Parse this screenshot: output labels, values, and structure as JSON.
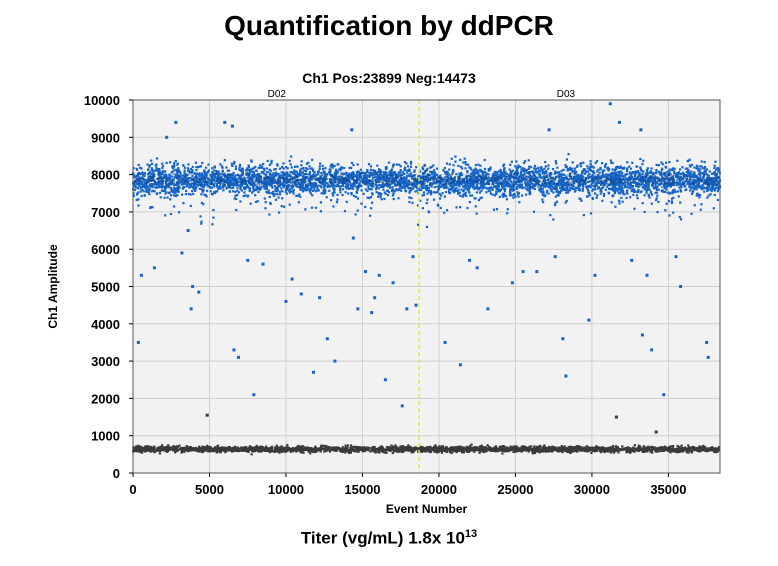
{
  "page_title": "Quantification by ddPCR",
  "footer": {
    "titer_prefix": "Titer (vg/mL)  1.8x 10",
    "titer_exponent": "13"
  },
  "chart_data": {
    "type": "scatter",
    "title": "Ch1 Pos:23899 Neg:14473",
    "xlabel": "Event Number",
    "ylabel": "Ch1 Amplitude",
    "xlim": [
      0,
      38372
    ],
    "ylim": [
      0,
      10000
    ],
    "xticks": [
      0,
      5000,
      10000,
      15000,
      20000,
      25000,
      30000,
      35000
    ],
    "yticks": [
      0,
      1000,
      2000,
      3000,
      4000,
      5000,
      6000,
      7000,
      8000,
      9000,
      10000
    ],
    "grid": true,
    "wells": [
      {
        "label": "D02",
        "x_center": 9400
      },
      {
        "label": "D03",
        "x_center": 28300
      }
    ],
    "well_divider_x": 18700,
    "colors": {
      "positive": "#1565c8",
      "negative": "#3a3a3a",
      "divider": "#e8e838",
      "plot_bg": "#f2f2f2",
      "grid": "#cfcfcf"
    },
    "clusters": [
      {
        "name": "Positive",
        "count": 23899,
        "amplitude_center": 7850,
        "amplitude_spread": 320
      },
      {
        "name": "Negative",
        "count": 14473,
        "amplitude_center": 640,
        "amplitude_spread": 60
      }
    ],
    "outliers": [
      {
        "x": 350,
        "y": 3500
      },
      {
        "x": 550,
        "y": 5300
      },
      {
        "x": 1400,
        "y": 5500
      },
      {
        "x": 2200,
        "y": 9000
      },
      {
        "x": 2800,
        "y": 9400
      },
      {
        "x": 3200,
        "y": 5900
      },
      {
        "x": 3600,
        "y": 6500
      },
      {
        "x": 3800,
        "y": 4400
      },
      {
        "x": 3900,
        "y": 5000
      },
      {
        "x": 4300,
        "y": 4850
      },
      {
        "x": 4850,
        "y": 1550
      },
      {
        "x": 6000,
        "y": 9400
      },
      {
        "x": 6500,
        "y": 9300
      },
      {
        "x": 6600,
        "y": 3300
      },
      {
        "x": 6900,
        "y": 3100
      },
      {
        "x": 7500,
        "y": 5700
      },
      {
        "x": 7900,
        "y": 2100
      },
      {
        "x": 8500,
        "y": 5600
      },
      {
        "x": 10000,
        "y": 4600
      },
      {
        "x": 10400,
        "y": 5200
      },
      {
        "x": 11000,
        "y": 4800
      },
      {
        "x": 11800,
        "y": 2700
      },
      {
        "x": 12200,
        "y": 4700
      },
      {
        "x": 12700,
        "y": 3600
      },
      {
        "x": 13200,
        "y": 3000
      },
      {
        "x": 14300,
        "y": 9200
      },
      {
        "x": 14400,
        "y": 6300
      },
      {
        "x": 14700,
        "y": 4400
      },
      {
        "x": 15200,
        "y": 5400
      },
      {
        "x": 15600,
        "y": 4300
      },
      {
        "x": 15800,
        "y": 4700
      },
      {
        "x": 16100,
        "y": 5300
      },
      {
        "x": 16500,
        "y": 2500
      },
      {
        "x": 17000,
        "y": 5100
      },
      {
        "x": 17600,
        "y": 1800
      },
      {
        "x": 17900,
        "y": 4400
      },
      {
        "x": 18300,
        "y": 5800
      },
      {
        "x": 18500,
        "y": 4500
      },
      {
        "x": 20400,
        "y": 3500
      },
      {
        "x": 21400,
        "y": 2900
      },
      {
        "x": 22000,
        "y": 5700
      },
      {
        "x": 22500,
        "y": 5500
      },
      {
        "x": 23200,
        "y": 4400
      },
      {
        "x": 24800,
        "y": 5100
      },
      {
        "x": 25500,
        "y": 5400
      },
      {
        "x": 26400,
        "y": 5400
      },
      {
        "x": 27200,
        "y": 9200
      },
      {
        "x": 27600,
        "y": 5800
      },
      {
        "x": 28100,
        "y": 3600
      },
      {
        "x": 28300,
        "y": 2600
      },
      {
        "x": 29800,
        "y": 4100
      },
      {
        "x": 30200,
        "y": 5300
      },
      {
        "x": 31200,
        "y": 9900
      },
      {
        "x": 31600,
        "y": 1500
      },
      {
        "x": 31800,
        "y": 9400
      },
      {
        "x": 32600,
        "y": 5700
      },
      {
        "x": 33200,
        "y": 9200
      },
      {
        "x": 33300,
        "y": 3700
      },
      {
        "x": 33600,
        "y": 5300
      },
      {
        "x": 33900,
        "y": 3300
      },
      {
        "x": 34200,
        "y": 1100
      },
      {
        "x": 34700,
        "y": 2100
      },
      {
        "x": 35500,
        "y": 5800
      },
      {
        "x": 35800,
        "y": 5000
      },
      {
        "x": 37500,
        "y": 3500
      },
      {
        "x": 37600,
        "y": 3100
      }
    ]
  }
}
